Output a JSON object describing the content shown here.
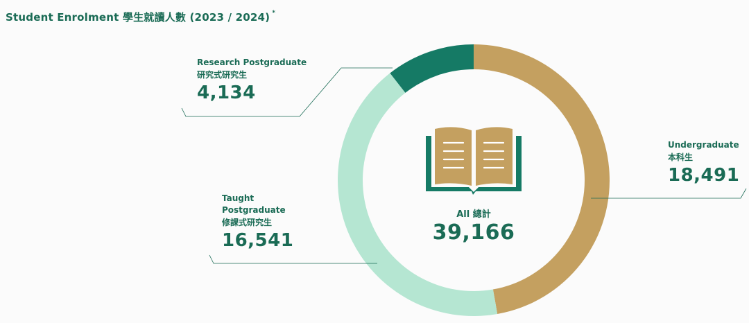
{
  "title": {
    "text": "Student Enrolment 學生就讀人數 (2023 / 2024)",
    "marker": "*"
  },
  "colors": {
    "undergraduate": "#c4a060",
    "taught_postgraduate": "#b5e6d2",
    "research_postgraduate": "#157a65",
    "text": "#1a6b55",
    "book": "#c4a060",
    "book_cover": "#157a65"
  },
  "icons": {
    "center": "open-book-icon"
  },
  "center": {
    "label": "All 總計",
    "total": "39,166"
  },
  "callouts": {
    "undergraduate": {
      "en": "Undergraduate",
      "zh": "本科生",
      "value": "18,491"
    },
    "taught_postgraduate": {
      "en_line1": "Taught",
      "en_line2": "Postgraduate",
      "zh": "修課式研究生",
      "value": "16,541"
    },
    "research_postgraduate": {
      "en": "Research Postgraduate",
      "zh": "研究式研究生",
      "value": "4,134"
    }
  },
  "chart_data": {
    "type": "pie",
    "variant": "donut",
    "title": "Student Enrolment 學生就讀人數 (2023 / 2024)",
    "categories": [
      "Undergraduate 本科生",
      "Taught Postgraduate 修課式研究生",
      "Research Postgraduate 研究式研究生"
    ],
    "values": [
      18491,
      16541,
      4134
    ],
    "total": 39166,
    "start_angle": "12 o'clock",
    "direction": "clockwise"
  }
}
